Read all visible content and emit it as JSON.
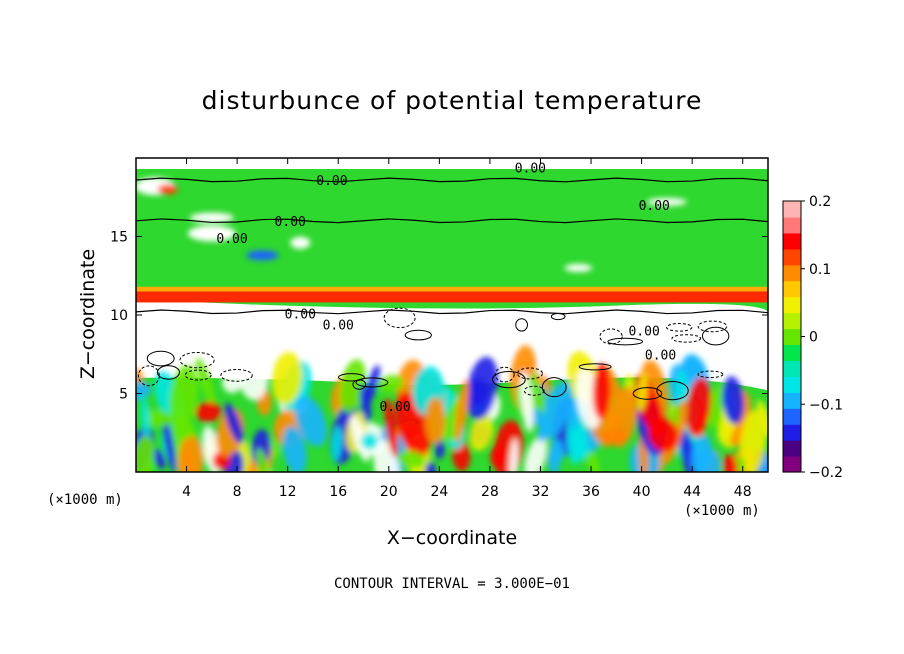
{
  "chart_data": {
    "type": "heatmap",
    "title": "disturbunce of potential temperature",
    "xlabel": "X−coordinate",
    "ylabel": "Z−coordinate",
    "x_unit": "(×1000 m)",
    "z_unit": "(×1000 m)",
    "x_ticks": [
      "4",
      "8",
      "12",
      "16",
      "20",
      "24",
      "28",
      "32",
      "36",
      "40",
      "44",
      "48"
    ],
    "x_tick_values": [
      4,
      8,
      12,
      16,
      20,
      24,
      28,
      32,
      36,
      40,
      44,
      48
    ],
    "y_ticks": [
      "5",
      "10",
      "15"
    ],
    "y_tick_values": [
      5,
      10,
      15
    ],
    "xlim": [
      0,
      50
    ],
    "ylim": [
      0,
      20
    ],
    "colorbar": {
      "ticks": [
        "0.2",
        "0.1",
        "0",
        "−0.1",
        "−0.2"
      ],
      "tick_values": [
        0.2,
        0.1,
        0,
        -0.1,
        -0.2
      ],
      "range": [
        -0.2,
        0.2
      ],
      "colors": [
        "#800080",
        "#4b0082",
        "#1e1ee6",
        "#1e64ff",
        "#14b4ff",
        "#00e6e6",
        "#00e6b4",
        "#00e64b",
        "#64e600",
        "#b4f000",
        "#f0f000",
        "#ffc800",
        "#ff8c00",
        "#ff4600",
        "#ff0000",
        "#ff7878",
        "#ffb4b4"
      ]
    },
    "contour_labels": [
      {
        "text": "0.00",
        "x": 15.5,
        "z": 18.6
      },
      {
        "text": "0.00",
        "x": 31.2,
        "z": 19.4
      },
      {
        "text": "0.00",
        "x": 12.2,
        "z": 16.0
      },
      {
        "text": "0.00",
        "x": 41.0,
        "z": 17.0
      },
      {
        "text": "0.00",
        "x": 7.6,
        "z": 14.9
      },
      {
        "text": "0.00",
        "x": 13.0,
        "z": 10.1
      },
      {
        "text": "0.00",
        "x": 16.0,
        "z": 9.4
      },
      {
        "text": "0.00",
        "x": 20.5,
        "z": 4.2
      },
      {
        "text": "0.00",
        "x": 40.2,
        "z": 9.0
      },
      {
        "text": "0.00",
        "x": 41.5,
        "z": 7.5
      }
    ],
    "contour_interval": "CONTOUR INTERVAL = 3.000E−01",
    "grid": false
  }
}
